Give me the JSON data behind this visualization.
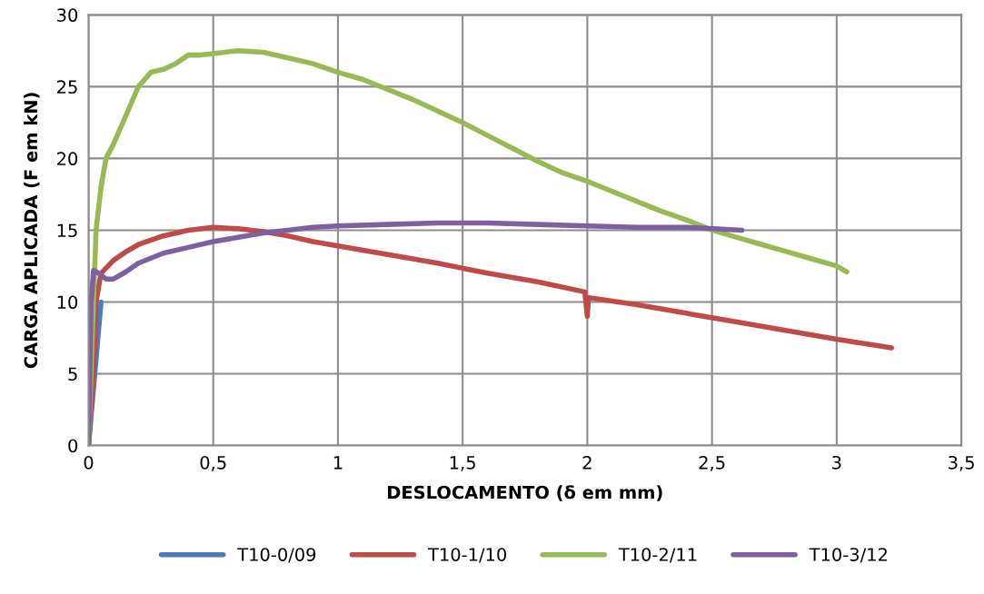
{
  "chart_data": {
    "type": "line",
    "xlabel": "DESLOCAMENTO (δ em mm)",
    "ylabel": "CARGA APLICADA (F em kN)",
    "xlim": [
      0,
      3.5
    ],
    "xticks": [
      0,
      {
        "value": 0.5,
        "label": "0,5"
      },
      1,
      {
        "value": 1.5,
        "label": "1,5"
      },
      2,
      {
        "value": 2.5,
        "label": "2,5"
      },
      3,
      {
        "value": 3.5,
        "label": "3,5"
      }
    ],
    "ylim": [
      0,
      30
    ],
    "yticks": [
      0,
      5,
      10,
      15,
      20,
      25,
      30
    ],
    "grid": true,
    "legend": "bottom",
    "marker": "none",
    "line_style": "solid",
    "series": [
      {
        "name": "T10-0/09",
        "color": "#4a7ebb",
        "x": [
          0,
          0.05
        ],
        "values": [
          0,
          10
        ]
      },
      {
        "name": "T10-1/10",
        "color": "#be4b48",
        "x": [
          0,
          0.02,
          0.03,
          0.05,
          0.1,
          0.15,
          0.2,
          0.3,
          0.4,
          0.5,
          0.6,
          0.7,
          0.8,
          0.9,
          1.0,
          1.2,
          1.4,
          1.6,
          1.8,
          1.99,
          2.0,
          2.005,
          2.2,
          2.4,
          2.6,
          2.8,
          3.0,
          3.22
        ],
        "values": [
          0,
          5,
          10,
          12,
          12.9,
          13.5,
          14.0,
          14.6,
          15.0,
          15.2,
          15.1,
          14.9,
          14.6,
          14.2,
          13.9,
          13.3,
          12.7,
          12.0,
          11.4,
          10.7,
          9.0,
          10.3,
          9.8,
          9.2,
          8.6,
          8.0,
          7.4,
          6.8
        ]
      },
      {
        "name": "T10-2/11",
        "color": "#98b954",
        "x": [
          0,
          0.02,
          0.03,
          0.05,
          0.07,
          0.1,
          0.15,
          0.2,
          0.25,
          0.3,
          0.35,
          0.4,
          0.45,
          0.5,
          0.6,
          0.7,
          0.8,
          0.9,
          1.0,
          1.1,
          1.2,
          1.3,
          1.4,
          1.5,
          1.6,
          1.7,
          1.8,
          1.9,
          2.0,
          2.1,
          2.2,
          2.3,
          2.4,
          2.5,
          2.6,
          2.7,
          2.8,
          2.9,
          3.0,
          3.04
        ],
        "values": [
          0,
          10,
          15,
          18,
          20,
          21,
          23,
          25,
          26,
          26.2,
          26.6,
          27.2,
          27.2,
          27.3,
          27.5,
          27.4,
          27.0,
          26.6,
          26.0,
          25.5,
          24.8,
          24.1,
          23.3,
          22.5,
          21.6,
          20.7,
          19.8,
          19.0,
          18.4,
          17.7,
          17.0,
          16.3,
          15.7,
          15.0,
          14.5,
          14.0,
          13.5,
          13.0,
          12.5,
          12.1
        ]
      },
      {
        "name": "T10-3/12",
        "color": "#7d60a0",
        "x": [
          0,
          0.01,
          0.02,
          0.04,
          0.07,
          0.1,
          0.15,
          0.2,
          0.3,
          0.4,
          0.5,
          0.6,
          0.7,
          0.8,
          0.9,
          1.0,
          1.2,
          1.4,
          1.6,
          1.8,
          2.0,
          2.2,
          2.4,
          2.62
        ],
        "values": [
          0,
          10,
          12.2,
          12.0,
          11.6,
          11.6,
          12.1,
          12.7,
          13.4,
          13.8,
          14.2,
          14.5,
          14.8,
          15.0,
          15.2,
          15.3,
          15.4,
          15.5,
          15.5,
          15.4,
          15.3,
          15.2,
          15.2,
          15.0
        ]
      }
    ]
  }
}
